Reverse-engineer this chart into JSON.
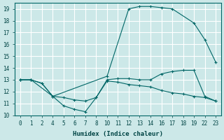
{
  "xlabel": "Humidex (Indice chaleur)",
  "bg_color": "#cce8e8",
  "grid_color": "#ffffff",
  "line_color": "#006666",
  "ylim": [
    10,
    19.5
  ],
  "yticks": [
    10,
    11,
    12,
    13,
    14,
    15,
    16,
    17,
    18,
    19
  ],
  "xtick_labels": [
    "0",
    "1",
    "2",
    "4",
    "5",
    "6",
    "7",
    "8",
    "10",
    "11",
    "12",
    "13",
    "14",
    "16",
    "17",
    "18",
    "19",
    "22",
    "23"
  ],
  "lines": [
    {
      "xi": [
        0,
        1,
        3,
        8,
        10,
        11,
        12,
        13,
        14,
        16,
        17,
        18
      ],
      "y": [
        13.0,
        13.0,
        11.6,
        13.3,
        19.0,
        19.2,
        19.2,
        19.1,
        19.0,
        17.8,
        16.4,
        14.5
      ]
    },
    {
      "xi": [
        0,
        1,
        2,
        3,
        4,
        5,
        6,
        7,
        8,
        9,
        10,
        11,
        12,
        13,
        14,
        15,
        16,
        17,
        18
      ],
      "y": [
        13.0,
        13.0,
        12.7,
        11.6,
        10.8,
        10.5,
        10.3,
        11.5,
        12.9,
        12.8,
        12.6,
        12.5,
        12.4,
        12.1,
        11.9,
        11.8,
        11.6,
        11.5,
        11.2
      ]
    },
    {
      "xi": [
        0,
        1,
        2,
        3,
        4,
        5,
        6,
        7,
        8,
        9,
        10,
        11,
        12,
        13,
        14,
        15,
        16,
        17,
        18
      ],
      "y": [
        13.0,
        13.0,
        12.7,
        11.6,
        11.5,
        11.3,
        11.2,
        11.5,
        13.0,
        13.1,
        13.1,
        13.0,
        13.0,
        13.5,
        13.7,
        13.8,
        13.8,
        11.6,
        11.2
      ]
    }
  ]
}
